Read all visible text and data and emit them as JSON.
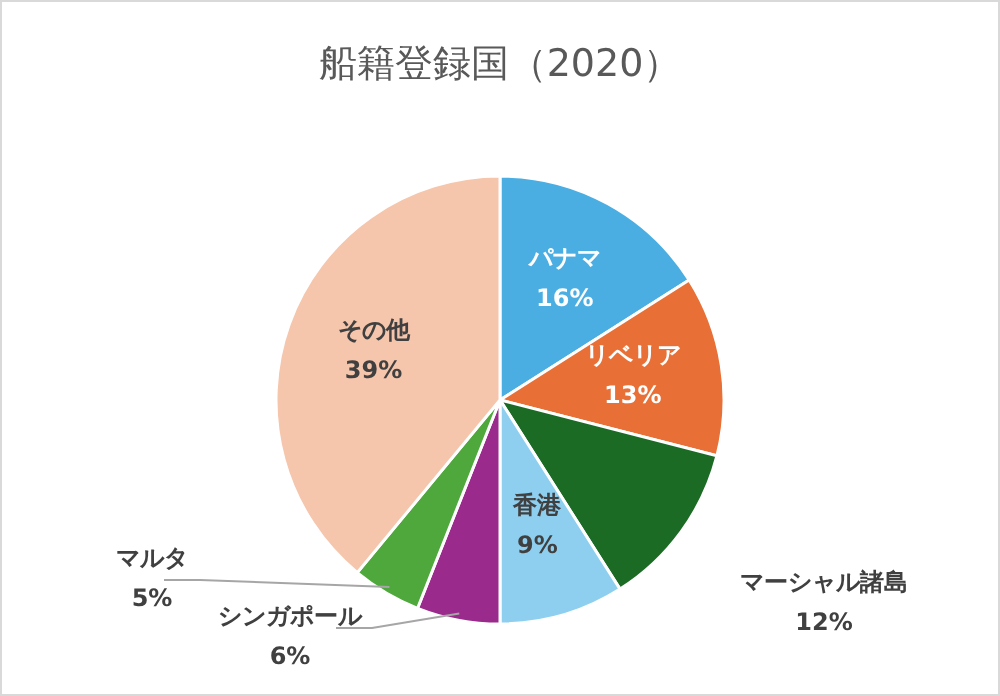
{
  "chart_data": {
    "type": "pie",
    "title": "船籍登録国（2020）",
    "categories": [
      "パナマ",
      "リベリア",
      "マーシャル諸島",
      "香港",
      "シンガポール",
      "マルタ",
      "その他"
    ],
    "values": [
      16,
      13,
      12,
      9,
      6,
      5,
      39
    ],
    "value_labels": [
      "16%",
      "13%",
      "12%",
      "9%",
      "6%",
      "5%",
      "39%"
    ],
    "colors": [
      "#4aaee3",
      "#e86f35",
      "#1c6b25",
      "#8ecff0",
      "#9a2a8c",
      "#4ea83b",
      "#f5c5ac"
    ]
  }
}
